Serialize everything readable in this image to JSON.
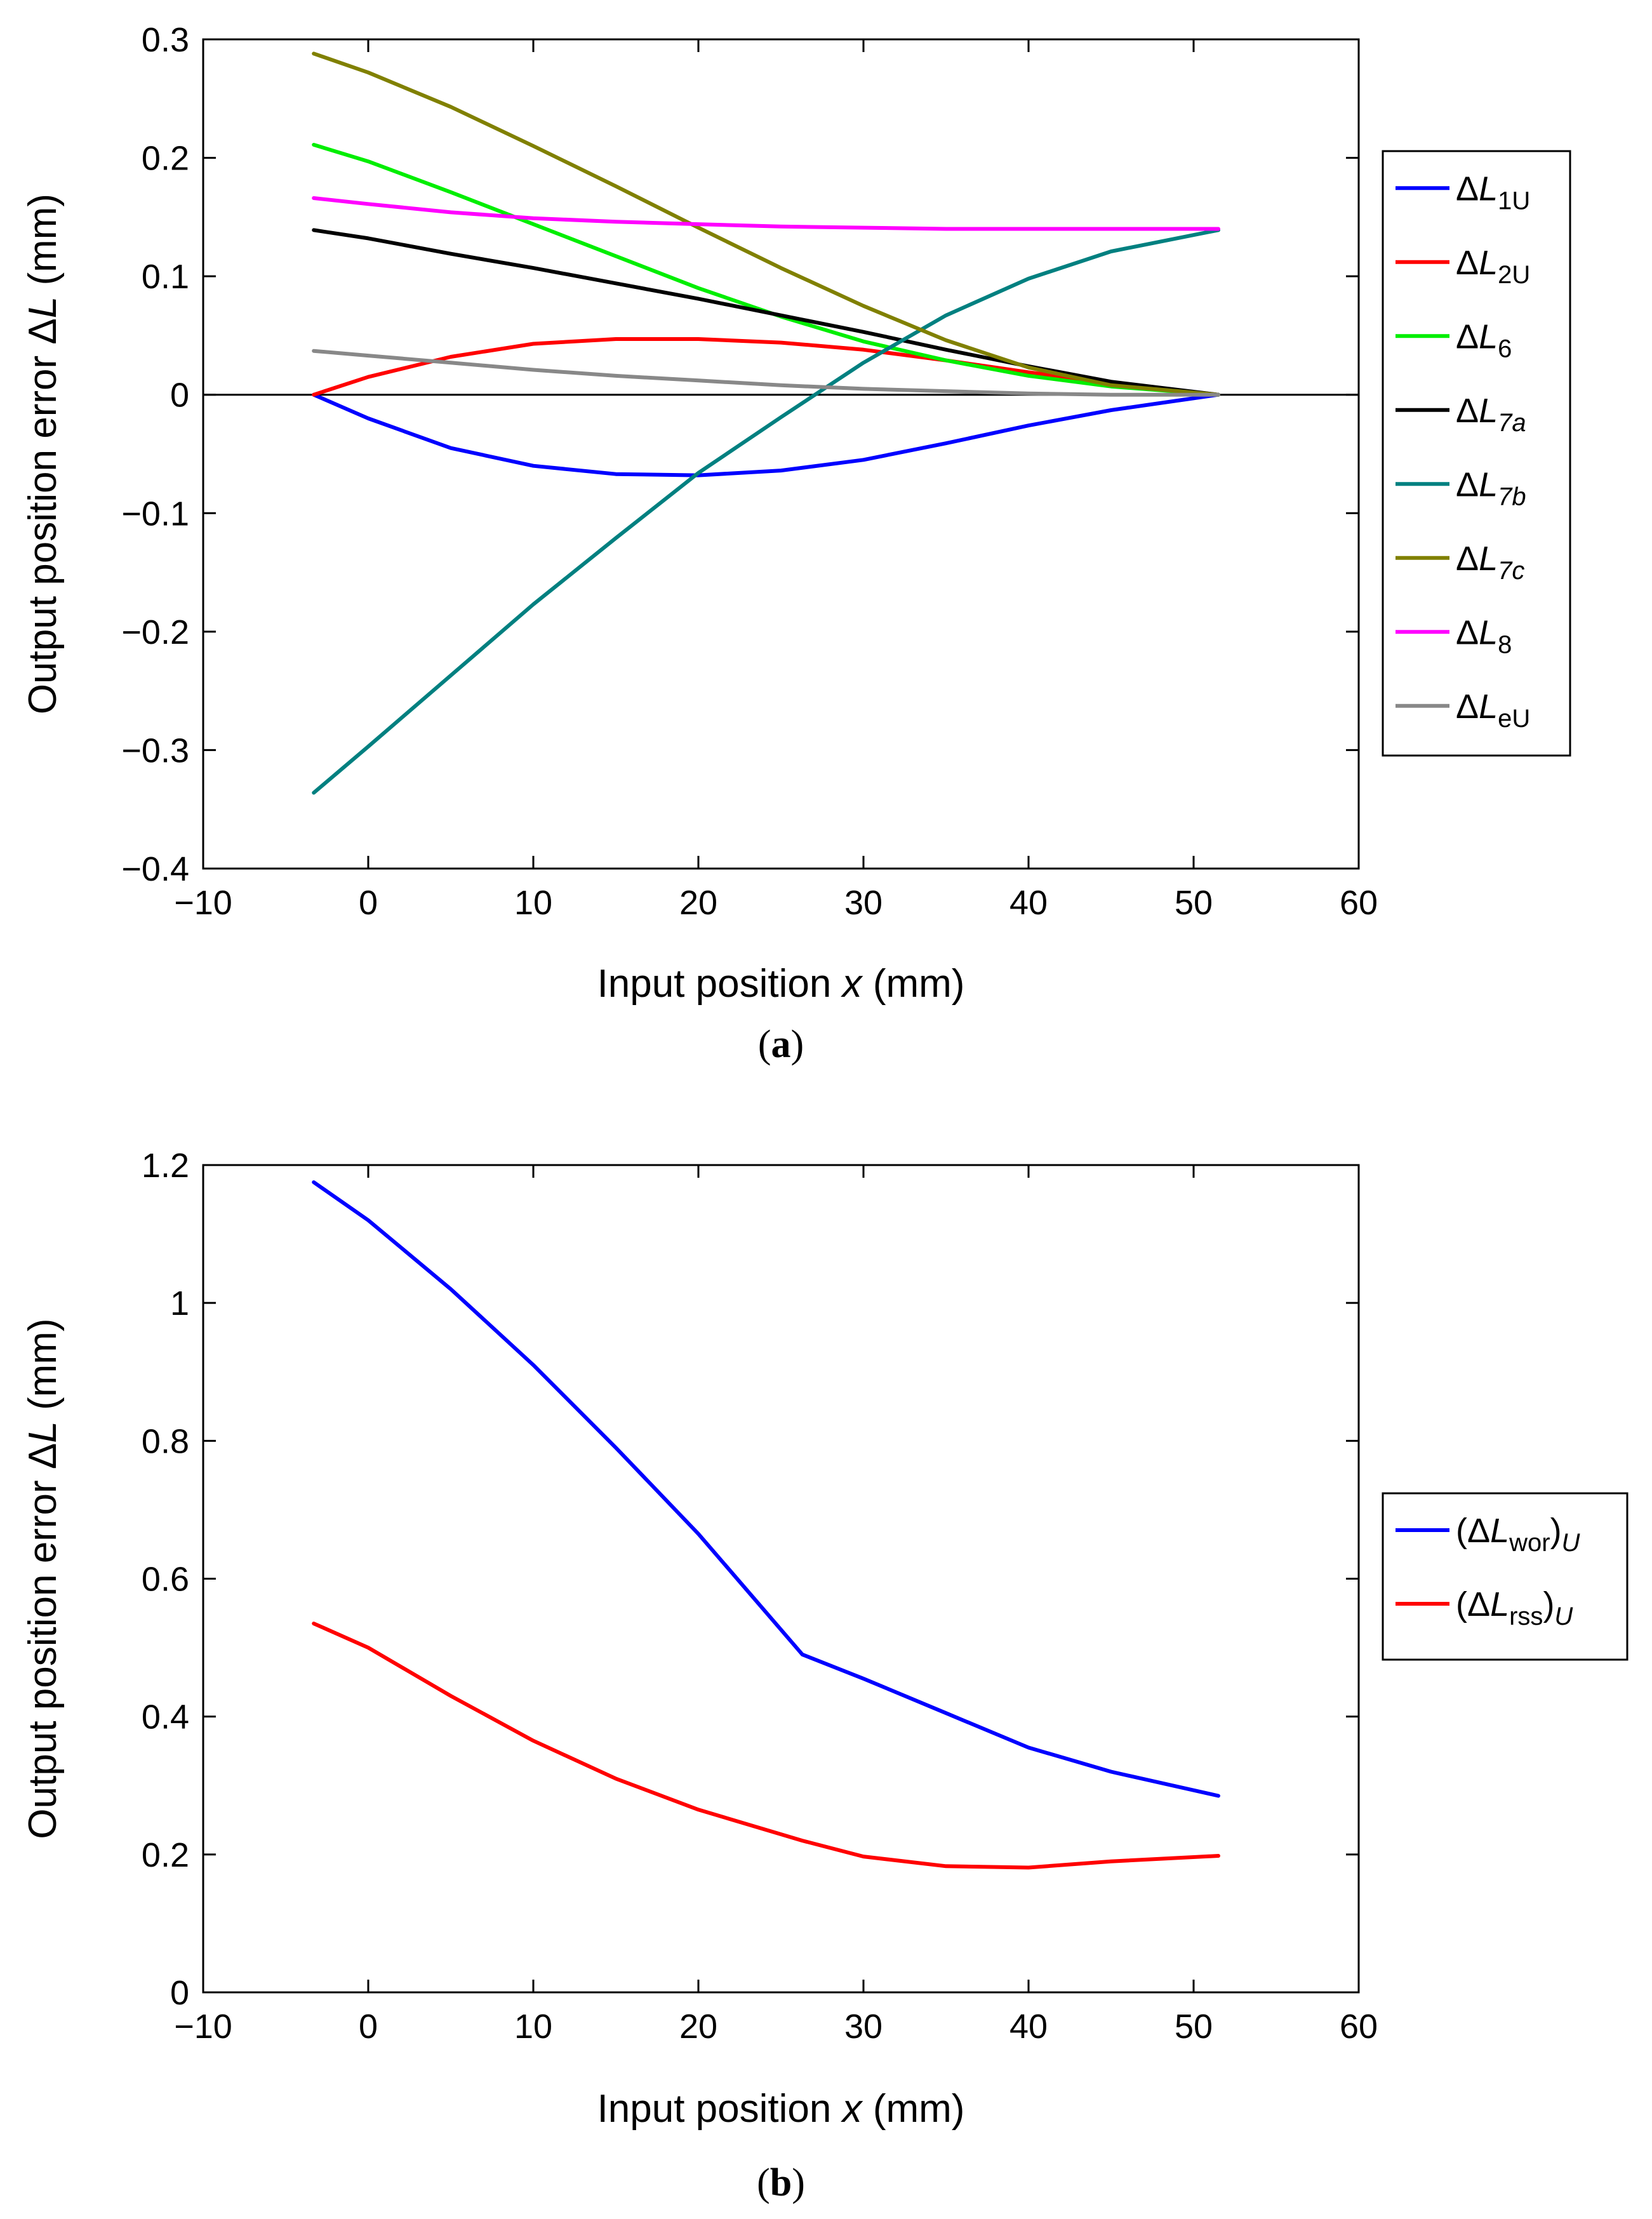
{
  "chart_data": [
    {
      "type": "line",
      "caption": "(a)",
      "xlabel": {
        "main": "Input position ",
        "var": "x",
        "unit": " (mm)"
      },
      "ylabel": {
        "main": "Output position error ",
        "sym": "Δ",
        "var": "L",
        "unit": " (mm)"
      },
      "xlim": [
        -10,
        60
      ],
      "ylim": [
        -0.4,
        0.3
      ],
      "xticks": [
        -10,
        0,
        10,
        20,
        30,
        40,
        50,
        60
      ],
      "xtick_labels": [
        "−10",
        "0",
        "10",
        "20",
        "30",
        "40",
        "50",
        "60"
      ],
      "yticks": [
        -0.4,
        -0.3,
        -0.2,
        -0.1,
        0,
        0.1,
        0.2,
        0.3
      ],
      "ytick_labels": [
        "−0.4",
        "−0.3",
        "−0.2",
        "−0.1",
        "0",
        "0.1",
        "0.2",
        "0.3"
      ],
      "zero_line": true,
      "grid": false,
      "legend_position": "outside-right-top",
      "x": [
        -3.3,
        0,
        5,
        10,
        15,
        20,
        25,
        30,
        35,
        40,
        45,
        51.5
      ],
      "series": [
        {
          "name": "ΔL1U",
          "base": "Δ",
          "var": "L",
          "sub": "1U",
          "sub_italic": false,
          "color": "#0000ff",
          "values": [
            0,
            -0.02,
            -0.045,
            -0.06,
            -0.067,
            -0.068,
            -0.064,
            -0.055,
            -0.041,
            -0.026,
            -0.013,
            0
          ]
        },
        {
          "name": "ΔL2U",
          "base": "Δ",
          "var": "L",
          "sub": "2U",
          "sub_italic": false,
          "color": "#ff0000",
          "values": [
            0,
            0.015,
            0.032,
            0.043,
            0.047,
            0.047,
            0.044,
            0.038,
            0.029,
            0.019,
            0.01,
            0
          ]
        },
        {
          "name": "ΔL6",
          "base": "Δ",
          "var": "L",
          "sub": "6",
          "sub_italic": false,
          "color": "#00ee00",
          "values": [
            0.211,
            0.197,
            0.171,
            0.144,
            0.117,
            0.09,
            0.066,
            0.045,
            0.029,
            0.016,
            0.007,
            0
          ]
        },
        {
          "name": "ΔL7a",
          "base": "Δ",
          "var": "L",
          "sub": "7a",
          "sub_italic": true,
          "color": "#000000",
          "values": [
            0.139,
            0.132,
            0.119,
            0.107,
            0.094,
            0.081,
            0.067,
            0.053,
            0.038,
            0.024,
            0.011,
            0
          ]
        },
        {
          "name": "ΔL7b",
          "base": "Δ",
          "var": "L",
          "sub": "7b",
          "sub_italic": true,
          "color": "#008080",
          "values": [
            -0.336,
            -0.297,
            -0.237,
            -0.177,
            -0.121,
            -0.066,
            -0.019,
            0.027,
            0.067,
            0.098,
            0.121,
            0.139
          ]
        },
        {
          "name": "ΔL7c",
          "base": "Δ",
          "var": "L",
          "sub": "7c",
          "sub_italic": true,
          "color": "#808000",
          "values": [
            0.288,
            0.272,
            0.243,
            0.21,
            0.176,
            0.141,
            0.107,
            0.075,
            0.046,
            0.023,
            0.008,
            0
          ]
        },
        {
          "name": "ΔL8",
          "base": "Δ",
          "var": "L",
          "sub": "8",
          "sub_italic": false,
          "color": "#ff00ff",
          "values": [
            0.166,
            0.161,
            0.154,
            0.149,
            0.146,
            0.144,
            0.142,
            0.141,
            0.14,
            0.14,
            0.14,
            0.14
          ]
        },
        {
          "name": "ΔLeU",
          "base": "Δ",
          "var": "L",
          "sub": "eU",
          "sub_italic": false,
          "color": "#888888",
          "values": [
            0.037,
            0.033,
            0.027,
            0.021,
            0.016,
            0.012,
            0.008,
            0.005,
            0.003,
            0.001,
            0.0,
            0
          ]
        }
      ]
    },
    {
      "type": "line",
      "caption": "(b)",
      "xlabel": {
        "main": "Input position ",
        "var": "x",
        "unit": " (mm)"
      },
      "ylabel": {
        "main": "Output position error ",
        "sym": "Δ",
        "var": "L",
        "unit": " (mm)"
      },
      "xlim": [
        -10,
        60
      ],
      "ylim": [
        0,
        1.2
      ],
      "xticks": [
        -10,
        0,
        10,
        20,
        30,
        40,
        50,
        60
      ],
      "xtick_labels": [
        "−10",
        "0",
        "10",
        "20",
        "30",
        "40",
        "50",
        "60"
      ],
      "yticks": [
        0,
        0.2,
        0.4,
        0.6,
        0.8,
        1.0,
        1.2
      ],
      "ytick_labels": [
        "0",
        "0.2",
        "0.4",
        "0.6",
        "0.8",
        "1",
        "1.2"
      ],
      "zero_line": false,
      "grid": false,
      "legend_position": "outside-right-middle",
      "x": [
        -3.3,
        0,
        5,
        10,
        15,
        20,
        26.3,
        30,
        35,
        40,
        45,
        51.5
      ],
      "series": [
        {
          "name": "(ΔLwor)U",
          "base": "(Δ",
          "var": "L",
          "sub": "wor",
          "sub_italic": false,
          "close": ")",
          "close_sub": "U",
          "color": "#0000ff",
          "values": [
            1.175,
            1.12,
            1.02,
            0.91,
            0.79,
            0.665,
            0.49,
            0.455,
            0.405,
            0.355,
            0.32,
            0.285
          ]
        },
        {
          "name": "(ΔLrss)U",
          "base": "(Δ",
          "var": "L",
          "sub": "rss",
          "sub_italic": false,
          "close": ")",
          "close_sub": "U",
          "color": "#ff0000",
          "values": [
            0.535,
            0.5,
            0.43,
            0.365,
            0.31,
            0.265,
            0.22,
            0.197,
            0.183,
            0.181,
            0.19,
            0.198
          ]
        }
      ]
    }
  ]
}
